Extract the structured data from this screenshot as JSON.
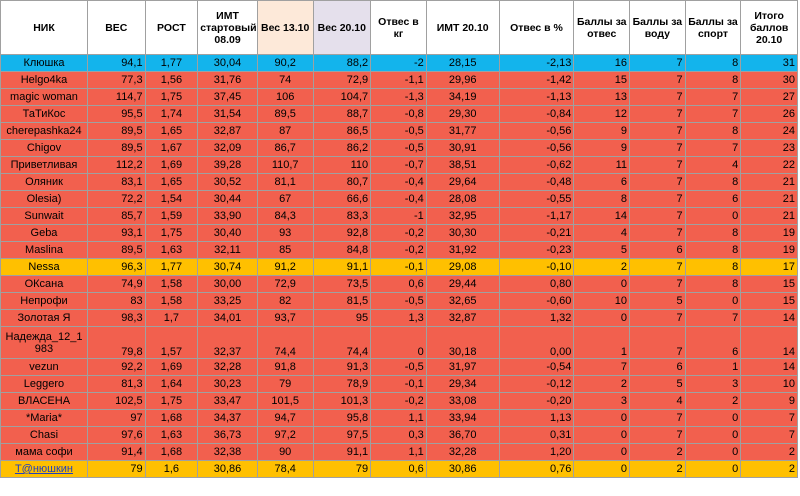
{
  "headers": [
    "НИК",
    "ВЕС",
    "РОСТ",
    "ИМТ стартовый 08.09",
    "Вес 13.10",
    "Вес 20.10",
    "Отвес в кг",
    "ИМТ 20.10",
    "Отвес в %",
    "Баллы за отвес",
    "Баллы за воду",
    "Баллы за спорт",
    "Итого баллов 20.10"
  ],
  "rows": [
    {
      "style": "blue",
      "cells": [
        "Клюшка",
        "94,1",
        "1,77",
        "30,04",
        "90,2",
        "88,2",
        "-2",
        "28,15",
        "-2,13",
        "16",
        "7",
        "8",
        "31"
      ]
    },
    {
      "style": "red",
      "cells": [
        "Helgo4ka",
        "77,3",
        "1,56",
        "31,76",
        "74",
        "72,9",
        "-1,1",
        "29,96",
        "-1,42",
        "15",
        "7",
        "8",
        "30"
      ]
    },
    {
      "style": "red",
      "cells": [
        "magic woman",
        "114,7",
        "1,75",
        "37,45",
        "106",
        "104,7",
        "-1,3",
        "34,19",
        "-1,13",
        "13",
        "7",
        "7",
        "27"
      ]
    },
    {
      "style": "red",
      "cells": [
        "ТаТиКос",
        "95,5",
        "1,74",
        "31,54",
        "89,5",
        "88,7",
        "-0,8",
        "29,30",
        "-0,84",
        "12",
        "7",
        "7",
        "26"
      ]
    },
    {
      "style": "red",
      "cells": [
        "cherepashka24",
        "89,5",
        "1,65",
        "32,87",
        "87",
        "86,5",
        "-0,5",
        "31,77",
        "-0,56",
        "9",
        "7",
        "8",
        "24"
      ]
    },
    {
      "style": "red",
      "cells": [
        "Chigov",
        "89,5",
        "1,67",
        "32,09",
        "86,7",
        "86,2",
        "-0,5",
        "30,91",
        "-0,56",
        "9",
        "7",
        "7",
        "23"
      ]
    },
    {
      "style": "red",
      "cells": [
        "Приветливая",
        "112,2",
        "1,69",
        "39,28",
        "110,7",
        "110",
        "-0,7",
        "38,51",
        "-0,62",
        "11",
        "7",
        "4",
        "22"
      ]
    },
    {
      "style": "red",
      "cells": [
        "Оляник",
        "83,1",
        "1,65",
        "30,52",
        "81,1",
        "80,7",
        "-0,4",
        "29,64",
        "-0,48",
        "6",
        "7",
        "8",
        "21"
      ]
    },
    {
      "style": "red",
      "cells": [
        "Olesia)",
        "72,2",
        "1,54",
        "30,44",
        "67",
        "66,6",
        "-0,4",
        "28,08",
        "-0,55",
        "8",
        "7",
        "6",
        "21"
      ]
    },
    {
      "style": "red",
      "cells": [
        "Sunwait",
        "85,7",
        "1,59",
        "33,90",
        "84,3",
        "83,3",
        "-1",
        "32,95",
        "-1,17",
        "14",
        "7",
        "0",
        "21"
      ]
    },
    {
      "style": "red",
      "cells": [
        "Geba",
        "93,1",
        "1,75",
        "30,40",
        "93",
        "92,8",
        "-0,2",
        "30,30",
        "-0,21",
        "4",
        "7",
        "8",
        "19"
      ]
    },
    {
      "style": "red",
      "cells": [
        "Maslina",
        "89,5",
        "1,63",
        "32,11",
        "85",
        "84,8",
        "-0,2",
        "31,92",
        "-0,23",
        "5",
        "6",
        "8",
        "19"
      ]
    },
    {
      "style": "gold",
      "cells": [
        "Nessa",
        "96,3",
        "1,77",
        "30,74",
        "91,2",
        "91,1",
        "-0,1",
        "29,08",
        "-0,10",
        "2",
        "7",
        "8",
        "17"
      ]
    },
    {
      "style": "red",
      "cells": [
        "ОКсана",
        "74,9",
        "1,58",
        "30,00",
        "72,9",
        "73,5",
        "0,6",
        "29,44",
        "0,80",
        "0",
        "7",
        "8",
        "15"
      ]
    },
    {
      "style": "red",
      "cells": [
        "Непрофи",
        "83",
        "1,58",
        "33,25",
        "82",
        "81,5",
        "-0,5",
        "32,65",
        "-0,60",
        "10",
        "5",
        "0",
        "15"
      ]
    },
    {
      "style": "red",
      "cells": [
        "Золотая Я",
        "98,3",
        "1,7",
        "34,01",
        "93,7",
        "95",
        "1,3",
        "32,87",
        "1,32",
        "0",
        "7",
        "7",
        "14"
      ]
    },
    {
      "style": "red tall",
      "cells": [
        "Надежда_12_1 983",
        "79,8",
        "1,57",
        "32,37",
        "74,4",
        "74,4",
        "0",
        "30,18",
        "0,00",
        "1",
        "7",
        "6",
        "14"
      ]
    },
    {
      "style": "red",
      "cells": [
        "vezun",
        "92,2",
        "1,69",
        "32,28",
        "91,8",
        "91,3",
        "-0,5",
        "31,97",
        "-0,54",
        "7",
        "6",
        "1",
        "14"
      ]
    },
    {
      "style": "red",
      "cells": [
        "Leggero",
        "81,3",
        "1,64",
        "30,23",
        "79",
        "78,9",
        "-0,1",
        "29,34",
        "-0,12",
        "2",
        "5",
        "3",
        "10"
      ]
    },
    {
      "style": "red",
      "cells": [
        "ВЛАСЕНА",
        "102,5",
        "1,75",
        "33,47",
        "101,5",
        "101,3",
        "-0,2",
        "33,08",
        "-0,20",
        "3",
        "4",
        "2",
        "9"
      ]
    },
    {
      "style": "red",
      "cells": [
        "*Maria*",
        "97",
        "1,68",
        "34,37",
        "94,7",
        "95,8",
        "1,1",
        "33,94",
        "1,13",
        "0",
        "7",
        "0",
        "7"
      ]
    },
    {
      "style": "red",
      "cells": [
        "Chasi",
        "97,6",
        "1,63",
        "36,73",
        "97,2",
        "97,5",
        "0,3",
        "36,70",
        "0,31",
        "0",
        "7",
        "0",
        "7"
      ]
    },
    {
      "style": "red",
      "cells": [
        "мама софи",
        "91,4",
        "1,68",
        "32,38",
        "90",
        "91,1",
        "1,1",
        "32,28",
        "1,20",
        "0",
        "2",
        "0",
        "2"
      ]
    },
    {
      "style": "gold link-row",
      "cells": [
        "T@нюшкин",
        "79",
        "1,6",
        "30,86",
        "78,4",
        "79",
        "0,6",
        "30,86",
        "0,76",
        "0",
        "2",
        "0",
        "2"
      ]
    }
  ]
}
